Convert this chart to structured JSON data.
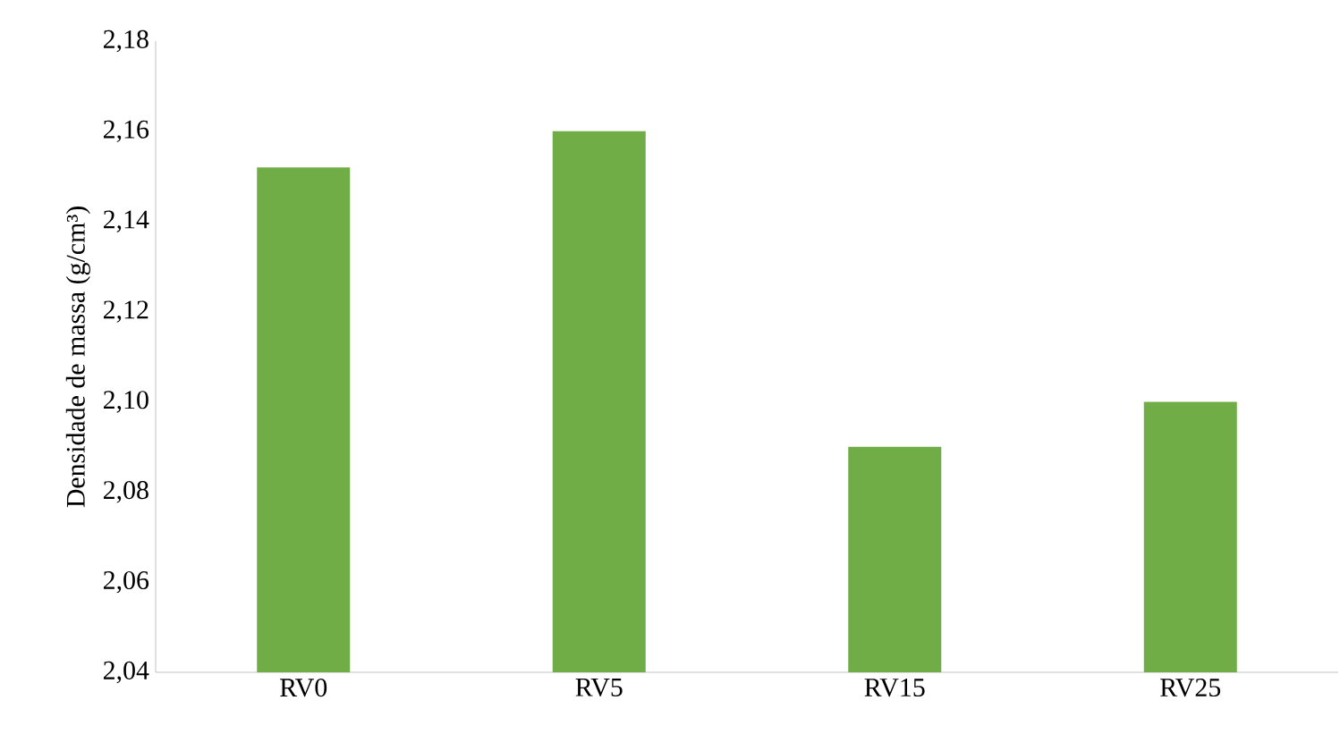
{
  "chart_data": {
    "type": "bar",
    "ylabel": "Densidade de massa (g/cm³)",
    "categories": [
      "RV0",
      "RV5",
      "RV15",
      "RV25"
    ],
    "values": [
      2.152,
      2.16,
      2.09,
      2.1
    ],
    "color": "#70ad47",
    "ylim": [
      2.04,
      2.18
    ],
    "yticks": [
      {
        "value": 2.04,
        "label": "2,04"
      },
      {
        "value": 2.06,
        "label": "2,06"
      },
      {
        "value": 2.08,
        "label": "2,08"
      },
      {
        "value": 2.1,
        "label": "2,10"
      },
      {
        "value": 2.12,
        "label": "2,12"
      },
      {
        "value": 2.14,
        "label": "2,14"
      },
      {
        "value": 2.16,
        "label": "2,16"
      },
      {
        "value": 2.18,
        "label": "2,18"
      }
    ],
    "grid": false
  }
}
